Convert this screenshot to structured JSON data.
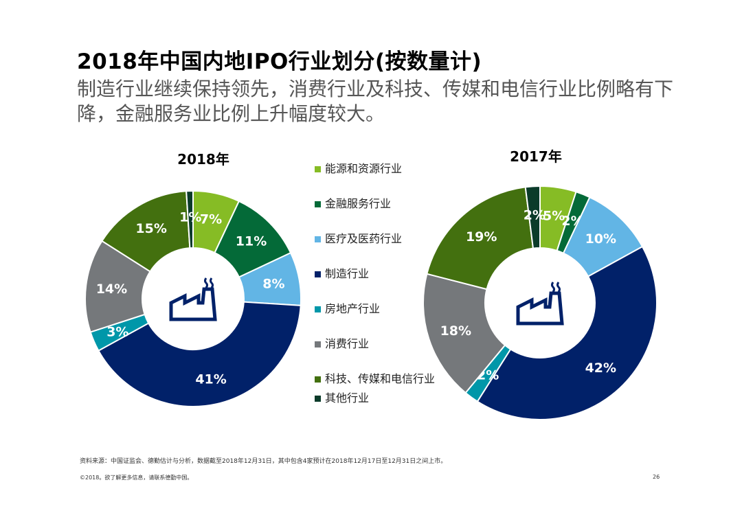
{
  "header": {
    "title": "2018年中国内地IPO行业划分(按数量计)",
    "subtitle": "制造行业继续保持领先，消费行业及科技、传媒和电信行业比例略有下降，金融服务业比例上升幅度较大。"
  },
  "legend": [
    {
      "label": "能源和资源行业",
      "color": "#86bc25"
    },
    {
      "label": "金融服务行业",
      "color": "#046a38"
    },
    {
      "label": "医疗及医药行业",
      "color": "#62b5e5"
    },
    {
      "label": "制造行业",
      "color": "#012169"
    },
    {
      "label": "房地产行业",
      "color": "#0097a9"
    },
    {
      "label": "消费行业",
      "color": "#75787b"
    },
    {
      "label": "科技、传媒和电信行业",
      "color": "#43700f"
    },
    {
      "label": "其他行业",
      "color": "#0b3b2a"
    }
  ],
  "icon": "factory-icon",
  "chart_data": [
    {
      "type": "pie",
      "title": "2018年",
      "categories": [
        "能源和资源行业",
        "金融服务行业",
        "医疗及医药行业",
        "制造行业",
        "房地产行业",
        "消费行业",
        "科技、传媒和电信行业",
        "其他行业"
      ],
      "values": [
        7,
        11,
        8,
        41,
        3,
        14,
        15,
        1
      ],
      "labels": [
        "7%",
        "11%",
        "8%",
        "41%",
        "3%",
        "14%",
        "15%",
        "1%"
      ]
    },
    {
      "type": "pie",
      "title": "2017年",
      "categories": [
        "能源和资源行业",
        "金融服务行业",
        "医疗及医药行业",
        "制造行业",
        "房地产行业",
        "消费行业",
        "科技、传媒和电信行业",
        "其他行业"
      ],
      "values": [
        5,
        2,
        10,
        42,
        2,
        18,
        19,
        2
      ],
      "labels": [
        "5%",
        "2%",
        "10%",
        "42%",
        "2%",
        "18%",
        "19%",
        "2%"
      ]
    }
  ],
  "footer": {
    "source": "资料来源：中国证监会、德勤估计与分析，数据截至2018年12月31日，其中包含4家预计在2018年12月17日至12月31日之间上市。",
    "copyright": "©2018。欲了解更多信息，请联系德勤中国。",
    "page_number": "26"
  }
}
